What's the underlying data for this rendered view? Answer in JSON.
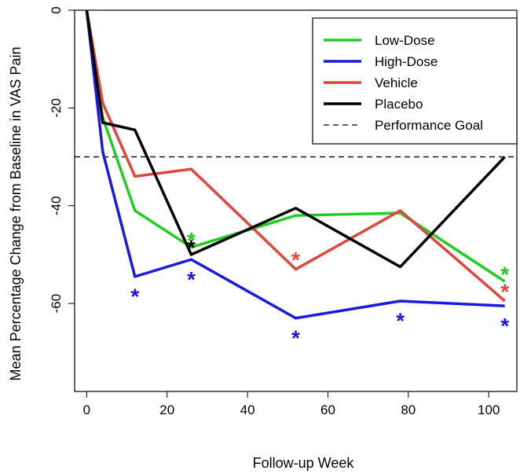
{
  "chart_data": {
    "type": "line",
    "xlabel": "Follow-up Week",
    "ylabel": "Mean Percentage Change from Baseline in VAS Pain",
    "xlim": [
      -3,
      107
    ],
    "ylim": [
      -78,
      0
    ],
    "xticks": [
      0,
      20,
      40,
      60,
      80,
      100
    ],
    "yticks": [
      0,
      -20,
      -40,
      -60
    ],
    "xtick_labels": [
      "0",
      "20",
      "40",
      "60",
      "80",
      "100"
    ],
    "ytick_labels": [
      "0",
      "-20",
      "-40",
      "-60"
    ],
    "grid": false,
    "legend_position": "top-right",
    "series": [
      {
        "name": "Low-Dose",
        "color": "#22cc22",
        "x": [
          0,
          4,
          12,
          26,
          52,
          78,
          104
        ],
        "y": [
          0,
          -22,
          -41,
          -48.5,
          -42,
          -41.5,
          -55.5
        ],
        "markers": [
          {
            "x": 26,
            "y": -46.5,
            "text": "*"
          },
          {
            "x": 104,
            "y": -53.5,
            "text": "*"
          }
        ]
      },
      {
        "name": "High-Dose",
        "color": "#1a1adf",
        "x": [
          0,
          4,
          12,
          26,
          52,
          78,
          104
        ],
        "y": [
          0,
          -29,
          -54.5,
          -51,
          -63,
          -59.5,
          -60.5
        ],
        "markers": [
          {
            "x": 12,
            "y": -58,
            "text": "*"
          },
          {
            "x": 26,
            "y": -54.5,
            "text": "*"
          },
          {
            "x": 52,
            "y": -66.5,
            "text": "*"
          },
          {
            "x": 78,
            "y": -63,
            "text": "*"
          },
          {
            "x": 104,
            "y": -64,
            "text": "*"
          }
        ]
      },
      {
        "name": "Vehicle",
        "color": "#e0463b",
        "x": [
          0,
          4,
          12,
          26,
          52,
          78,
          104
        ],
        "y": [
          0,
          -19,
          -34,
          -32.5,
          -53,
          -41,
          -59.5
        ],
        "markers": [
          {
            "x": 52,
            "y": -50.5,
            "text": "*"
          },
          {
            "x": 104,
            "y": -57,
            "text": "*"
          }
        ]
      },
      {
        "name": "Placebo",
        "color": "#000000",
        "x": [
          0,
          4,
          12,
          26,
          52,
          78,
          104
        ],
        "y": [
          0,
          -23,
          -24.5,
          -50,
          -40.5,
          -52.5,
          -30
        ],
        "markers": [
          {
            "x": 26,
            "y": -48,
            "text": "*"
          }
        ]
      }
    ],
    "reference_lines": [
      {
        "name": "Performance Goal",
        "y": -30,
        "style": "dashed",
        "color": "#000000"
      }
    ]
  }
}
